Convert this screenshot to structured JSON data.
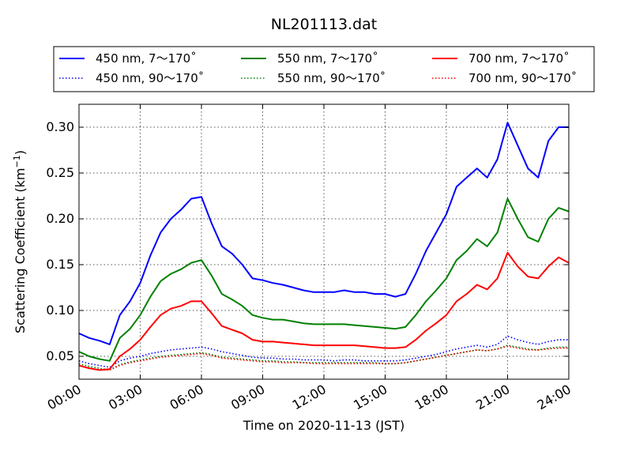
{
  "chart_data": {
    "type": "line",
    "title": "NL201113.dat",
    "xlabel": "Time on 2020-11-13 (JST)",
    "ylabel_main": "Scattering Coefficient (km",
    "ylabel_sup": "−1",
    "ylabel_close": ")",
    "x_ticks": [
      "00:00",
      "03:00",
      "06:00",
      "09:00",
      "12:00",
      "15:00",
      "18:00",
      "21:00",
      "24:00"
    ],
    "x_range_hours": [
      0,
      24
    ],
    "y_ticks": [
      "0.05",
      "0.10",
      "0.15",
      "0.20",
      "0.25",
      "0.30"
    ],
    "y_tick_values": [
      0.05,
      0.1,
      0.15,
      0.2,
      0.25,
      0.3
    ],
    "ylim": [
      0.025,
      0.325
    ],
    "grid": true,
    "legend_placement": "top, above plot",
    "x_hours": [
      0,
      0.5,
      1,
      1.5,
      2,
      2.5,
      3,
      3.5,
      4,
      4.5,
      5,
      5.5,
      6,
      6.5,
      7,
      7.5,
      8,
      8.5,
      9,
      9.5,
      10,
      10.5,
      11,
      11.5,
      12,
      12.5,
      13,
      13.5,
      14,
      14.5,
      15,
      15.5,
      16,
      16.5,
      17,
      17.5,
      18,
      18.5,
      19,
      19.5,
      20,
      20.5,
      21,
      21.5,
      22,
      22.5,
      23,
      23.5,
      24
    ],
    "series": [
      {
        "name": "450 nm, 7～170˚",
        "color": "#0000ff",
        "style": "solid",
        "values": [
          0.075,
          0.07,
          0.067,
          0.063,
          0.095,
          0.11,
          0.13,
          0.16,
          0.185,
          0.2,
          0.21,
          0.222,
          0.224,
          0.195,
          0.17,
          0.162,
          0.15,
          0.135,
          0.133,
          0.13,
          0.128,
          0.125,
          0.122,
          0.12,
          0.12,
          0.12,
          0.122,
          0.12,
          0.12,
          0.118,
          0.118,
          0.115,
          0.118,
          0.14,
          0.165,
          0.185,
          0.205,
          0.235,
          0.245,
          0.255,
          0.245,
          0.265,
          0.305,
          0.28,
          0.255,
          0.245,
          0.285,
          0.3,
          0.3
        ]
      },
      {
        "name": "450 nm, 90～170˚",
        "color": "#0000ff",
        "style": "dotted",
        "values": [
          0.045,
          0.042,
          0.04,
          0.038,
          0.045,
          0.048,
          0.05,
          0.053,
          0.055,
          0.057,
          0.058,
          0.059,
          0.06,
          0.058,
          0.055,
          0.053,
          0.051,
          0.049,
          0.048,
          0.048,
          0.047,
          0.047,
          0.046,
          0.046,
          0.046,
          0.045,
          0.046,
          0.046,
          0.045,
          0.045,
          0.045,
          0.045,
          0.046,
          0.048,
          0.05,
          0.052,
          0.055,
          0.058,
          0.06,
          0.062,
          0.06,
          0.063,
          0.072,
          0.068,
          0.065,
          0.063,
          0.066,
          0.068,
          0.068
        ]
      },
      {
        "name": "550 nm, 7～170˚",
        "color": "#008000",
        "style": "solid",
        "values": [
          0.055,
          0.05,
          0.047,
          0.045,
          0.07,
          0.08,
          0.095,
          0.115,
          0.132,
          0.14,
          0.145,
          0.152,
          0.155,
          0.138,
          0.118,
          0.112,
          0.105,
          0.095,
          0.092,
          0.09,
          0.09,
          0.088,
          0.086,
          0.085,
          0.085,
          0.085,
          0.085,
          0.084,
          0.083,
          0.082,
          0.081,
          0.08,
          0.082,
          0.095,
          0.11,
          0.122,
          0.135,
          0.155,
          0.165,
          0.178,
          0.17,
          0.185,
          0.222,
          0.2,
          0.18,
          0.175,
          0.2,
          0.212,
          0.208
        ]
      },
      {
        "name": "550 nm, 90～170˚",
        "color": "#008000",
        "style": "dotted",
        "values": [
          0.042,
          0.039,
          0.037,
          0.035,
          0.041,
          0.044,
          0.046,
          0.048,
          0.05,
          0.051,
          0.052,
          0.053,
          0.054,
          0.052,
          0.049,
          0.048,
          0.047,
          0.046,
          0.045,
          0.045,
          0.044,
          0.044,
          0.043,
          0.043,
          0.043,
          0.043,
          0.043,
          0.043,
          0.043,
          0.043,
          0.042,
          0.042,
          0.043,
          0.045,
          0.047,
          0.049,
          0.051,
          0.053,
          0.055,
          0.057,
          0.056,
          0.058,
          0.062,
          0.06,
          0.058,
          0.057,
          0.059,
          0.06,
          0.06
        ]
      },
      {
        "name": "700 nm, 7～170˚",
        "color": "#ff0000",
        "style": "solid",
        "values": [
          0.04,
          0.037,
          0.035,
          0.036,
          0.05,
          0.058,
          0.068,
          0.082,
          0.095,
          0.102,
          0.105,
          0.11,
          0.11,
          0.097,
          0.083,
          0.079,
          0.075,
          0.068,
          0.066,
          0.066,
          0.065,
          0.064,
          0.063,
          0.062,
          0.062,
          0.062,
          0.062,
          0.062,
          0.061,
          0.06,
          0.059,
          0.059,
          0.06,
          0.068,
          0.078,
          0.086,
          0.095,
          0.11,
          0.118,
          0.128,
          0.123,
          0.135,
          0.163,
          0.148,
          0.137,
          0.135,
          0.148,
          0.158,
          0.152
        ]
      },
      {
        "name": "700 nm, 90～170˚",
        "color": "#ff0000",
        "style": "dotted",
        "values": [
          0.04,
          0.037,
          0.035,
          0.035,
          0.04,
          0.043,
          0.045,
          0.047,
          0.049,
          0.05,
          0.051,
          0.052,
          0.053,
          0.051,
          0.048,
          0.047,
          0.046,
          0.045,
          0.044,
          0.044,
          0.043,
          0.043,
          0.043,
          0.042,
          0.042,
          0.042,
          0.042,
          0.042,
          0.042,
          0.042,
          0.042,
          0.042,
          0.043,
          0.045,
          0.047,
          0.049,
          0.051,
          0.053,
          0.055,
          0.057,
          0.056,
          0.058,
          0.061,
          0.059,
          0.057,
          0.057,
          0.058,
          0.059,
          0.059
        ]
      }
    ]
  }
}
